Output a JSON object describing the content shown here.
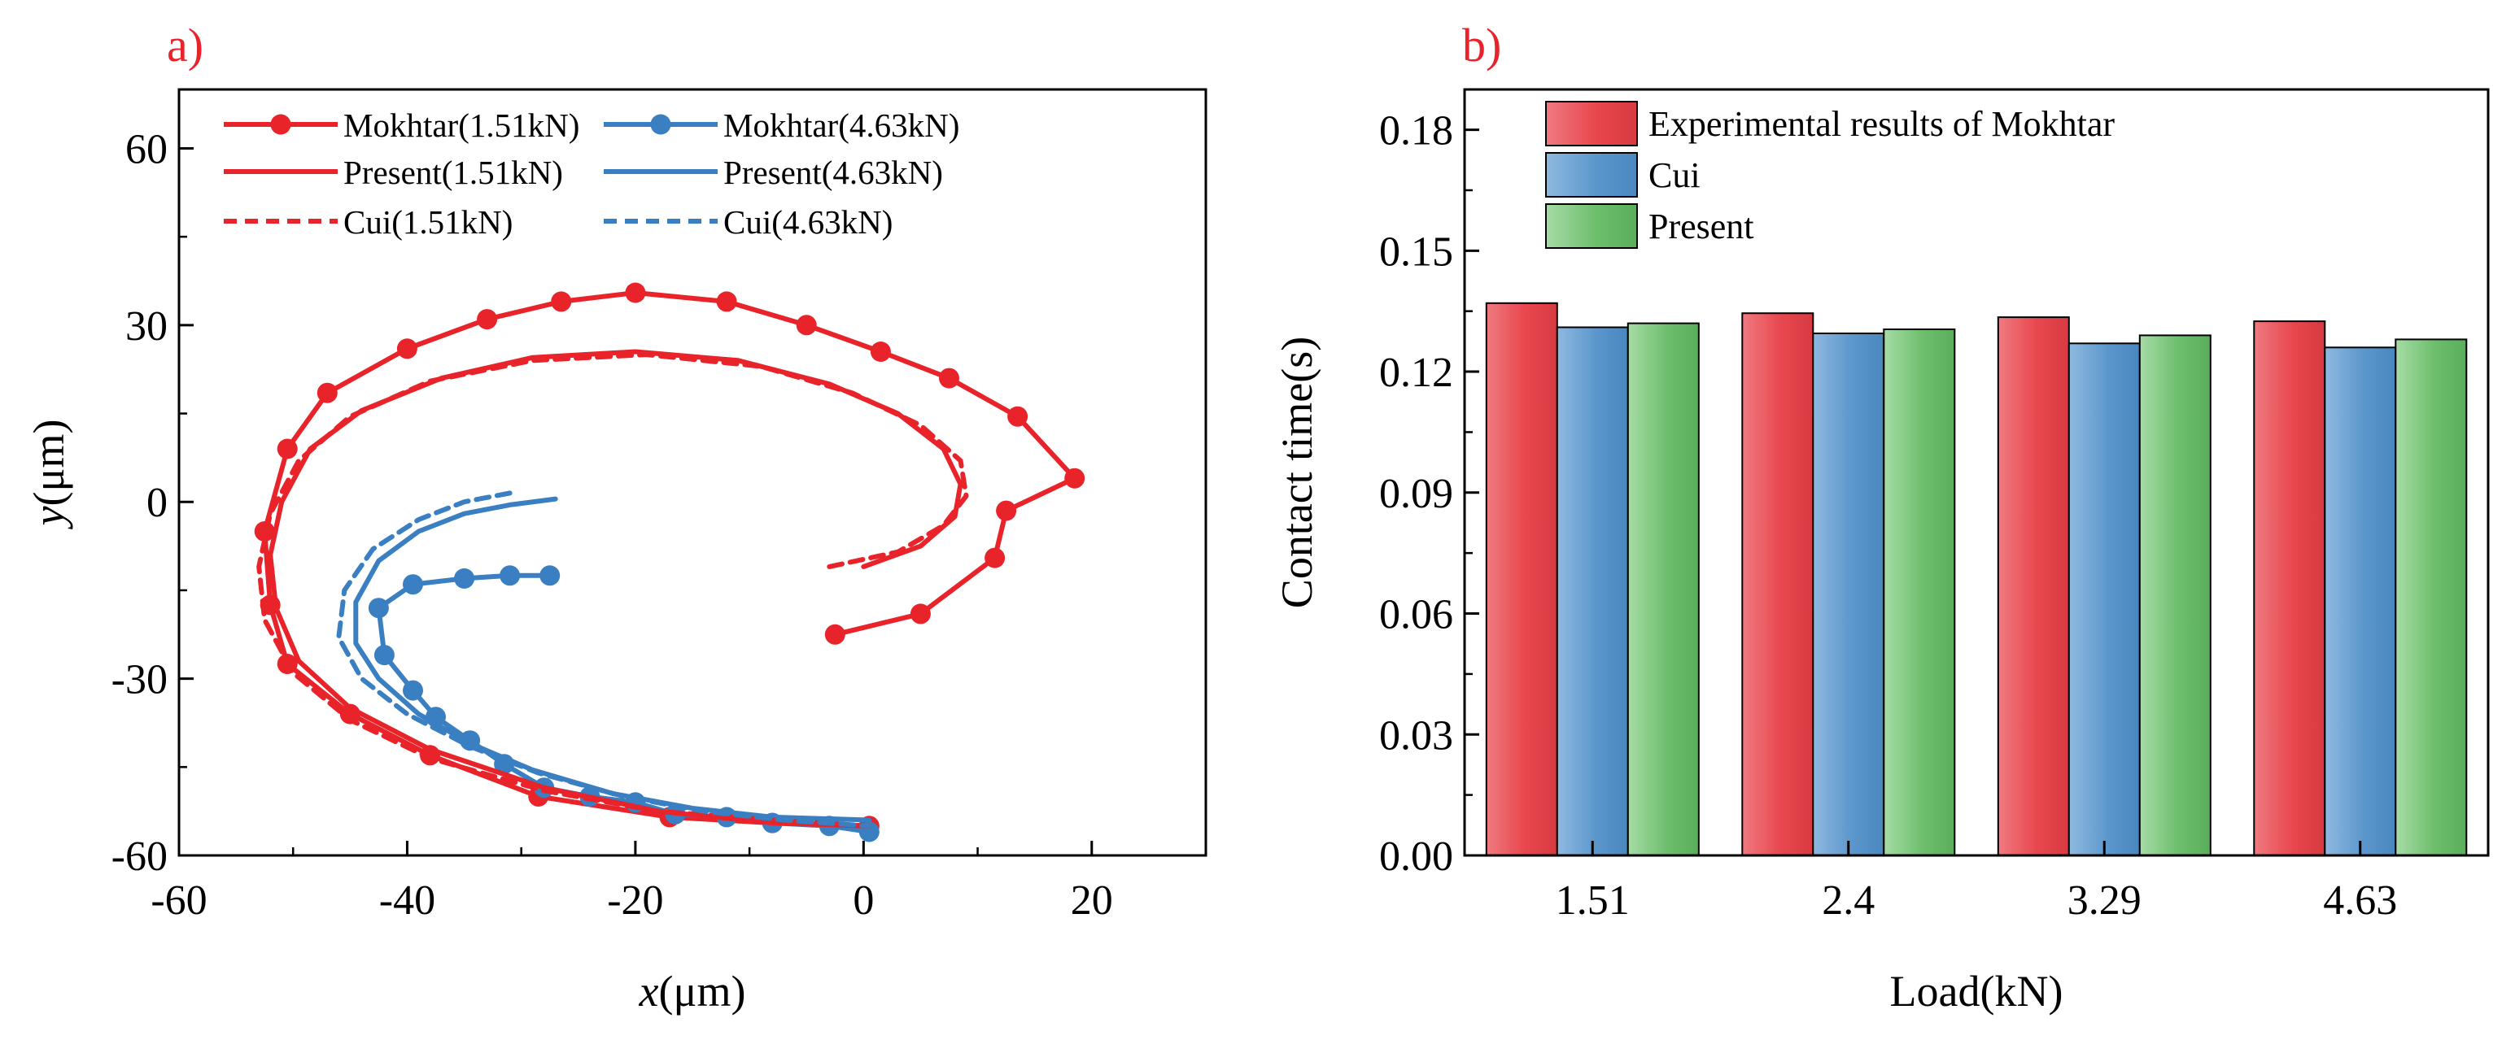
{
  "figure": {
    "panel_a_label": "a)",
    "panel_b_label": "b)",
    "panel_label_color": "#e8232a"
  },
  "chart_data": [
    {
      "type": "line",
      "panel": "a)",
      "xlabel": "x(μm)",
      "ylabel": "y(μm)",
      "xlim": [
        -60,
        30
      ],
      "ylim": [
        -60,
        70
      ],
      "xticks": [
        "-60",
        "-40",
        "-20",
        "0",
        "20"
      ],
      "yticks": [
        "-60",
        "-30",
        "0",
        "30",
        "60"
      ],
      "legend_position": "top",
      "grid": false,
      "series": [
        {
          "name": "Mokhtar(1.51kN)",
          "color": "#e8232a",
          "style": "solid-markers",
          "points": [
            [
              -2.5,
              -22.5
            ],
            [
              5,
              -19
            ],
            [
              11.5,
              -9.5
            ],
            [
              12.5,
              -1.5
            ],
            [
              18.5,
              4
            ],
            [
              13.5,
              14.5
            ],
            [
              7.5,
              21
            ],
            [
              1.5,
              25.5
            ],
            [
              -5,
              30
            ],
            [
              -12,
              34
            ],
            [
              -20,
              35.5
            ],
            [
              -26.5,
              34
            ],
            [
              -33,
              31
            ],
            [
              -40,
              26
            ],
            [
              -47,
              18.5
            ],
            [
              -50.5,
              9
            ],
            [
              -52.5,
              -5
            ],
            [
              -52,
              -17.5
            ],
            [
              -50.5,
              -27.5
            ],
            [
              -45,
              -36
            ],
            [
              -38,
              -43
            ],
            [
              -28.5,
              -50
            ],
            [
              -17,
              -53.5
            ],
            [
              -8,
              -54.5
            ],
            [
              0.5,
              -55
            ]
          ]
        },
        {
          "name": "Mokhtar(4.63kN)",
          "color": "#3a7fc1",
          "style": "solid-markers",
          "points": [
            [
              -27.5,
              -12.5
            ],
            [
              -31,
              -12.5
            ],
            [
              -35,
              -13
            ],
            [
              -39.5,
              -14
            ],
            [
              -42.5,
              -18
            ],
            [
              -42,
              -26
            ],
            [
              -39.5,
              -32
            ],
            [
              -37.5,
              -36.5
            ],
            [
              -34.5,
              -40.5
            ],
            [
              -31.5,
              -44.5
            ],
            [
              -28,
              -48.5
            ],
            [
              -24,
              -50
            ],
            [
              -20,
              -51
            ],
            [
              -16.5,
              -53
            ],
            [
              -12,
              -53.5
            ],
            [
              -8,
              -54.5
            ],
            [
              -3,
              -55
            ],
            [
              0.5,
              -56
            ]
          ]
        },
        {
          "name": "Present(1.51kN)",
          "color": "#e8232a",
          "style": "solid",
          "points": [
            [
              0,
              -11
            ],
            [
              5,
              -7.5
            ],
            [
              8,
              -2.5
            ],
            [
              8.5,
              3
            ],
            [
              7,
              9
            ],
            [
              3,
              15
            ],
            [
              -3,
              20
            ],
            [
              -11,
              24
            ],
            [
              -20,
              25.5
            ],
            [
              -29,
              24.5
            ],
            [
              -37,
              21
            ],
            [
              -44,
              15.5
            ],
            [
              -48.5,
              9
            ],
            [
              -51,
              0
            ],
            [
              -52,
              -9
            ],
            [
              -51.5,
              -18
            ],
            [
              -49.5,
              -27
            ],
            [
              -45,
              -35
            ],
            [
              -38,
              -42
            ],
            [
              -28,
              -48.5
            ],
            [
              -18,
              -52.5
            ],
            [
              -8,
              -54.5
            ],
            [
              0.5,
              -55
            ]
          ]
        },
        {
          "name": "Present(4.63kN)",
          "color": "#3a7fc1",
          "style": "solid",
          "points": [
            [
              -27,
              0.5
            ],
            [
              -31,
              -0.5
            ],
            [
              -35,
              -2
            ],
            [
              -39,
              -5
            ],
            [
              -42.5,
              -10
            ],
            [
              -44.5,
              -17
            ],
            [
              -44.5,
              -24
            ],
            [
              -42.5,
              -30
            ],
            [
              -39,
              -36
            ],
            [
              -34.5,
              -41
            ],
            [
              -29,
              -45.5
            ],
            [
              -22,
              -49.5
            ],
            [
              -15,
              -52
            ],
            [
              -8,
              -53.5
            ],
            [
              0.5,
              -54
            ]
          ]
        },
        {
          "name": "Cui(1.51kN)",
          "color": "#e8232a",
          "style": "dashed",
          "points": [
            [
              -3,
              -11
            ],
            [
              3,
              -8.5
            ],
            [
              7,
              -4
            ],
            [
              9,
              1
            ],
            [
              8.5,
              7
            ],
            [
              5,
              13
            ],
            [
              -1,
              18.5
            ],
            [
              -9,
              23
            ],
            [
              -19,
              25
            ],
            [
              -29,
              24
            ],
            [
              -38,
              20.5
            ],
            [
              -45,
              14.5
            ],
            [
              -49.5,
              7
            ],
            [
              -52,
              -2
            ],
            [
              -53,
              -11
            ],
            [
              -52.5,
              -20
            ],
            [
              -50,
              -29
            ],
            [
              -45,
              -37
            ],
            [
              -38,
              -43.5
            ],
            [
              -28,
              -49
            ],
            [
              -18,
              -52.5
            ],
            [
              -8,
              -54
            ],
            [
              0.5,
              -55
            ]
          ]
        },
        {
          "name": "Cui(4.63kN)",
          "color": "#3a7fc1",
          "style": "dashed",
          "points": [
            [
              -31,
              1.5
            ],
            [
              -35,
              0
            ],
            [
              -39,
              -3
            ],
            [
              -43,
              -8
            ],
            [
              -45.5,
              -15
            ],
            [
              -46,
              -23
            ],
            [
              -44,
              -30
            ],
            [
              -40,
              -36
            ],
            [
              -34.5,
              -41.5
            ],
            [
              -28.5,
              -46
            ],
            [
              -21,
              -50
            ],
            [
              -14,
              -52.5
            ],
            [
              -7,
              -54
            ],
            [
              0.5,
              -55
            ]
          ]
        }
      ]
    },
    {
      "type": "bar",
      "panel": "b)",
      "xlabel": "Load(kN)",
      "ylabel": "Contact time(s)",
      "ylim": [
        0,
        0.19
      ],
      "yticks": [
        "0.00",
        "0.03",
        "0.06",
        "0.09",
        "0.12",
        "0.15",
        "0.18"
      ],
      "categories": [
        "1.51",
        "2.4",
        "3.29",
        "4.63"
      ],
      "legend_position": "top-left",
      "grid": false,
      "series": [
        {
          "name": "Experimental results of Mokhtar",
          "color": "#e8474e",
          "values": [
            0.137,
            0.1345,
            0.1335,
            0.1325
          ]
        },
        {
          "name": "Cui",
          "color": "#5b97cc",
          "values": [
            0.131,
            0.1295,
            0.127,
            0.126
          ]
        },
        {
          "name": "Present",
          "color": "#6dbe6d",
          "values": [
            0.132,
            0.1305,
            0.129,
            0.128
          ]
        }
      ]
    }
  ]
}
